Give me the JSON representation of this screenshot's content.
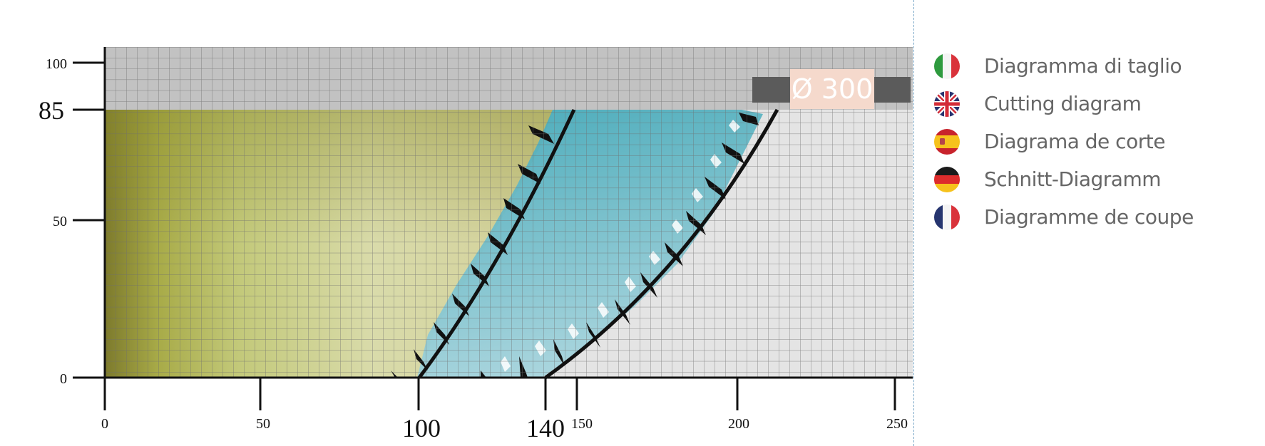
{
  "diagram": {
    "y_ticks": [
      "0",
      "50",
      "100"
    ],
    "y_highlight": "85",
    "x_ticks": [
      "0",
      "50",
      "150",
      "200",
      "250"
    ],
    "x_highlights": [
      "100",
      "140"
    ],
    "blade_badge": "Ø 300",
    "colors": {
      "background_panel": "#e4e4e4",
      "upper_band": "#c2c2c2",
      "grid": "#6e6e6e",
      "wood_dark": "#8a8a2a",
      "wood_light": "#dcdcae",
      "blade": "#5ab5c5",
      "badge_bg": "#f5d9cc",
      "badge_bar": "#5b5b5b"
    }
  },
  "legend": [
    {
      "flag": "italy-flag-icon",
      "label": "Diagramma di taglio"
    },
    {
      "flag": "uk-flag-icon",
      "label": "Cutting diagram"
    },
    {
      "flag": "spain-flag-icon",
      "label": "Diagrama de corte"
    },
    {
      "flag": "germany-flag-icon",
      "label": "Schnitt-Diagramm"
    },
    {
      "flag": "france-flag-icon",
      "label": "Diagramme de coupe"
    }
  ]
}
